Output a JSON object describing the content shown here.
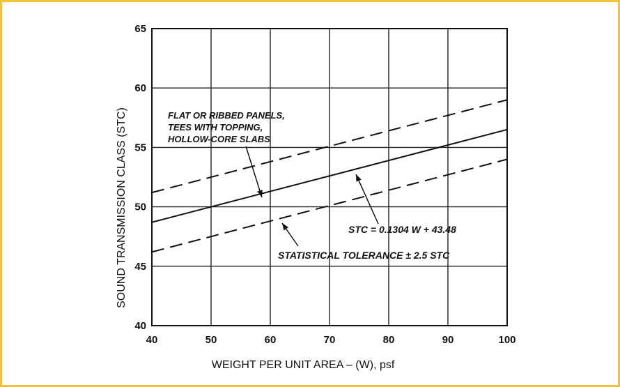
{
  "chart_data": {
    "type": "line",
    "xlabel": "WEIGHT PER UNIT AREA – (W), psf",
    "ylabel": "SOUND TRANSMISSION CLASS (STC)",
    "xlim": [
      40,
      100
    ],
    "ylim": [
      40,
      65
    ],
    "x_ticks": [
      40,
      50,
      60,
      70,
      80,
      90,
      100
    ],
    "y_ticks": [
      40,
      45,
      50,
      55,
      60,
      65
    ],
    "grid": true,
    "series": [
      {
        "style": "solid",
        "x": [
          40,
          100
        ],
        "y": [
          48.7,
          56.5
        ]
      },
      {
        "style": "dashed",
        "x": [
          40,
          100
        ],
        "y": [
          51.2,
          59.0
        ]
      },
      {
        "style": "dashed",
        "x": [
          40,
          100
        ],
        "y": [
          46.2,
          54.0
        ]
      }
    ],
    "annotations": [
      {
        "lines": [
          "FLAT OR  RIBBED PANELS,",
          "TEES WITH TOPPING,",
          "HOLLOW-CORE SLABS"
        ]
      },
      {
        "lines": [
          "STC  =  0.1304  W  +  43.48"
        ]
      },
      {
        "lines": [
          "STATISTICAL TOLERANCE  ±  2.5 STC"
        ]
      }
    ]
  }
}
